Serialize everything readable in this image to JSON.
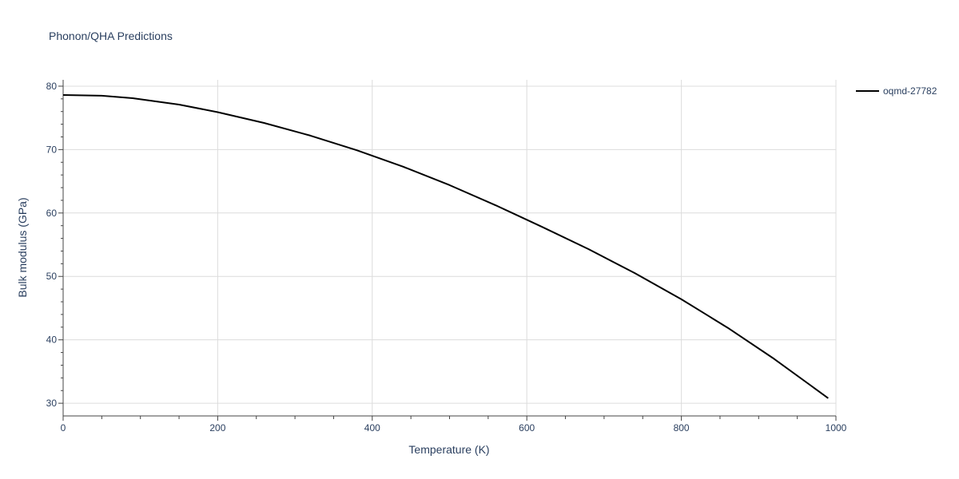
{
  "chart_data": {
    "type": "line",
    "title": "Phonon/QHA Predictions",
    "xlabel": "Temperature (K)",
    "ylabel": "Bulk modulus (GPa)",
    "xlim": [
      0,
      1000
    ],
    "ylim": [
      28,
      81
    ],
    "xticks": [
      0,
      200,
      400,
      600,
      800,
      1000
    ],
    "yticks": [
      30,
      40,
      50,
      60,
      70,
      80
    ],
    "grid": true,
    "legend_position": "top-right",
    "series": [
      {
        "name": "oqmd-27782",
        "color": "#000000",
        "x": [
          0,
          50,
          90,
          150,
          200,
          260,
          320,
          380,
          440,
          500,
          560,
          620,
          680,
          740,
          800,
          860,
          920,
          990
        ],
        "y": [
          78.6,
          78.5,
          78.1,
          77.1,
          75.9,
          74.2,
          72.2,
          69.9,
          67.3,
          64.4,
          61.2,
          57.8,
          54.3,
          50.5,
          46.4,
          41.9,
          37.0,
          30.8
        ]
      }
    ]
  }
}
